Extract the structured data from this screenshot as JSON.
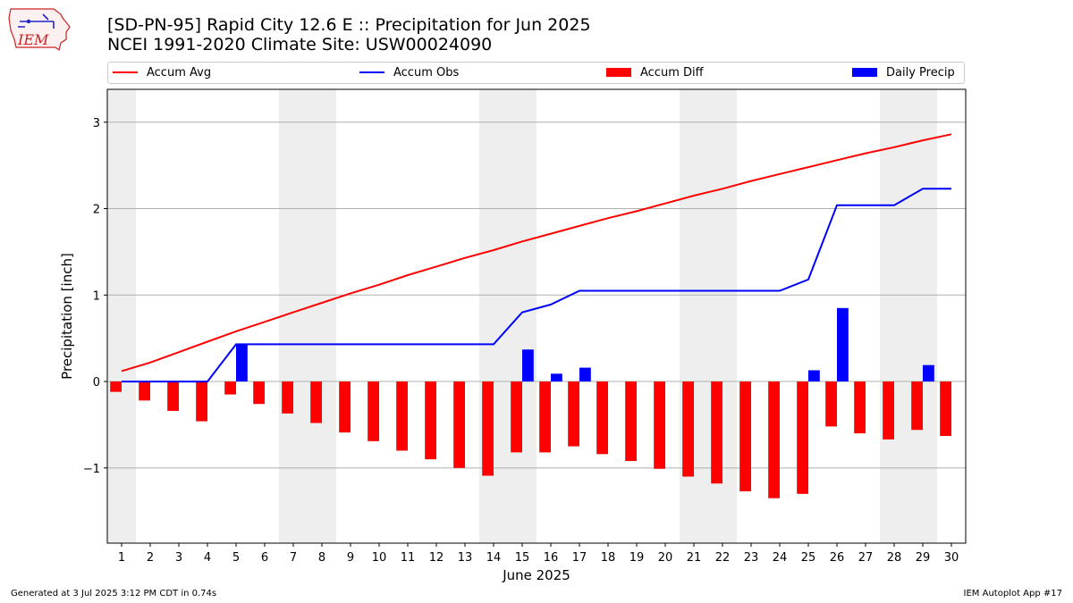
{
  "header": {
    "title_line1": "[SD-PN-95] Rapid City 12.6 E :: Precipitation for Jun 2025",
    "title_line2": "NCEI 1991-2020 Climate Site: USW00024090"
  },
  "logo": {
    "text": "IEM",
    "icon": "iowa-state-outline-icon",
    "color": "#cc2222"
  },
  "legend": {
    "items": [
      {
        "label": "Accum Avg",
        "kind": "line",
        "color": "#ff0000"
      },
      {
        "label": "Accum Obs",
        "kind": "line",
        "color": "#0000ff"
      },
      {
        "label": "Accum Diff",
        "kind": "bar",
        "color": "#ff0000"
      },
      {
        "label": "Daily Precip",
        "kind": "bar",
        "color": "#0000ff"
      }
    ]
  },
  "footer": {
    "generated": "Generated at 3 Jul 2025 3:12 PM CDT in 0.74s",
    "app": "IEM Autoplot App #17"
  },
  "chart_data": {
    "type": "bar",
    "xlabel": "June 2025",
    "ylabel": "Precipitation [inch]",
    "xlim": [
      0.5,
      30.5
    ],
    "ylim": [
      -1.87,
      3.38
    ],
    "yticks": [
      -1,
      0,
      1,
      2,
      3
    ],
    "ytick_labels": [
      "−1",
      "0",
      "1",
      "2",
      "3"
    ],
    "grid": true,
    "legend_position": "top",
    "weekend_shading_color": "#eeeeee",
    "weekend_days": [
      1,
      7,
      8,
      14,
      15,
      21,
      22,
      28,
      29
    ],
    "days": [
      1,
      2,
      3,
      4,
      5,
      6,
      7,
      8,
      9,
      10,
      11,
      12,
      13,
      14,
      15,
      16,
      17,
      18,
      19,
      20,
      21,
      22,
      23,
      24,
      25,
      26,
      27,
      28,
      29,
      30
    ],
    "series": [
      {
        "name": "Accum Avg",
        "kind": "line",
        "color": "#ff0000",
        "values": [
          0.12,
          0.22,
          0.34,
          0.46,
          0.58,
          0.69,
          0.8,
          0.91,
          1.02,
          1.12,
          1.23,
          1.33,
          1.43,
          1.52,
          1.62,
          1.71,
          1.8,
          1.89,
          1.97,
          2.06,
          2.15,
          2.23,
          2.32,
          2.4,
          2.48,
          2.56,
          2.64,
          2.71,
          2.79,
          2.86
        ]
      },
      {
        "name": "Accum Obs",
        "kind": "line",
        "color": "#0000ff",
        "values": [
          0.0,
          0.0,
          0.0,
          0.0,
          0.43,
          0.43,
          0.43,
          0.43,
          0.43,
          0.43,
          0.43,
          0.43,
          0.43,
          0.43,
          0.8,
          0.89,
          1.05,
          1.05,
          1.05,
          1.05,
          1.05,
          1.05,
          1.05,
          1.05,
          1.18,
          2.04,
          2.04,
          2.04,
          2.23,
          2.23
        ]
      },
      {
        "name": "Accum Diff",
        "kind": "bar",
        "color": "#ff0000",
        "values": [
          -0.12,
          -0.22,
          -0.34,
          -0.46,
          -0.15,
          -0.26,
          -0.37,
          -0.48,
          -0.59,
          -0.69,
          -0.8,
          -0.9,
          -1.0,
          -1.09,
          -0.82,
          -0.82,
          -0.75,
          -0.84,
          -0.92,
          -1.01,
          -1.1,
          -1.18,
          -1.27,
          -1.35,
          -1.3,
          -0.52,
          -0.6,
          -0.67,
          -0.56,
          -0.63
        ]
      },
      {
        "name": "Daily Precip",
        "kind": "bar",
        "color": "#0000ff",
        "values": [
          0,
          0,
          0,
          0,
          0.43,
          0,
          0,
          0,
          0,
          0,
          0,
          0,
          0,
          0,
          0.37,
          0.09,
          0.16,
          0,
          0,
          0,
          0,
          0,
          0,
          0,
          0.13,
          0.85,
          0,
          0,
          0.19,
          0
        ]
      }
    ]
  }
}
